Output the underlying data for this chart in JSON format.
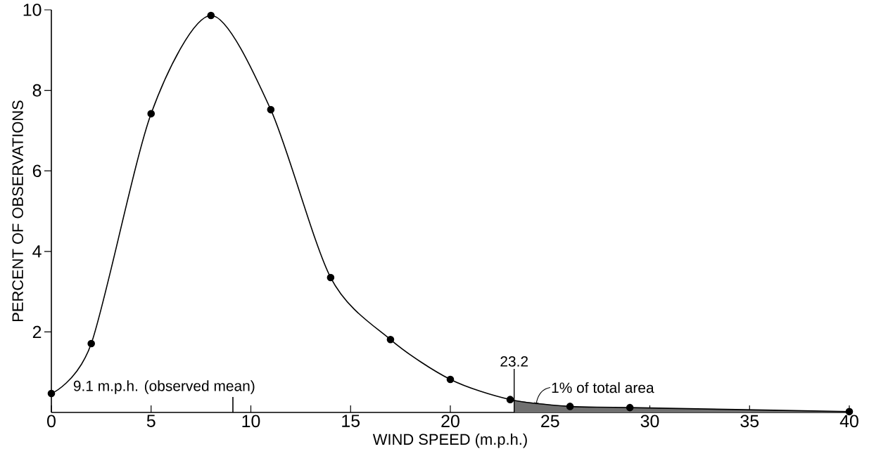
{
  "chart_data": {
    "type": "line",
    "xlabel": "WIND SPEED (m.p.h.)",
    "ylabel": "PERCENT OF OBSERVATIONS",
    "series": [
      {
        "color": "#000000",
        "marker": "circle",
        "x": [
          0,
          2,
          5,
          8,
          11,
          14,
          17,
          20,
          23,
          26,
          29,
          40
        ],
        "values": [
          0.47,
          1.71,
          7.42,
          9.86,
          7.52,
          3.35,
          1.81,
          0.82,
          0.32,
          0.15,
          0.12,
          0.02
        ]
      },
      {
        "type": "area",
        "color": "#707070",
        "x": [
          23.2,
          26,
          29,
          40
        ],
        "values": [
          0.3,
          0.15,
          0.12,
          0.02
        ]
      }
    ],
    "line_style": "solid",
    "xlim": [
      0,
      40
    ],
    "ylim": [
      0,
      10
    ],
    "xticks": [
      0,
      5,
      10,
      15,
      20,
      25,
      30,
      35,
      40
    ],
    "yticks": [
      2,
      4,
      6,
      8,
      10
    ],
    "ref_lines": [
      {
        "axis": "x",
        "value": 9.1,
        "label": "9.1 m.p.h. (observed mean)"
      },
      {
        "axis": "x",
        "value": 23.2,
        "label": "23.2"
      }
    ],
    "annotations": [
      {
        "text": "1% of total area",
        "x": 24.3,
        "y": 0.2
      }
    ]
  }
}
